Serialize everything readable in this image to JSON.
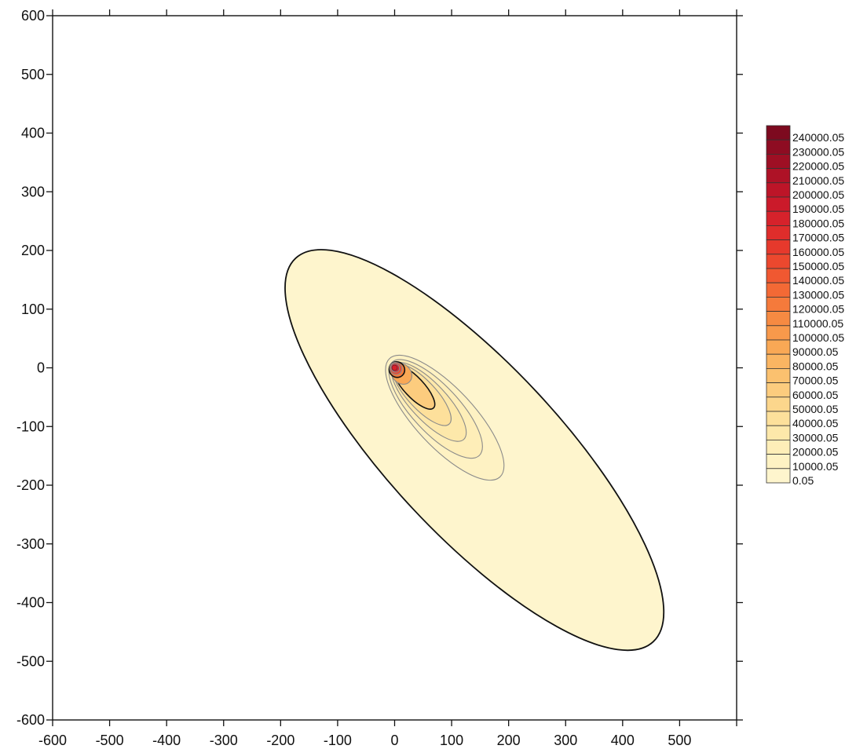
{
  "chart_data": {
    "type": "contour",
    "title": "",
    "xlabel": "",
    "ylabel": "",
    "xlim": [
      -600,
      600
    ],
    "ylim": [
      -600,
      600
    ],
    "x_tick_labels": [
      -600,
      -500,
      -400,
      -300,
      -200,
      -100,
      0,
      100,
      200,
      300,
      400,
      500
    ],
    "y_tick_labels": [
      600,
      500,
      400,
      300,
      200,
      100,
      0,
      -100,
      -200,
      -300,
      -400,
      -500,
      -600
    ],
    "source_point": [
      0,
      0
    ],
    "contour_levels": [
      {
        "level": "0.05",
        "center": [
          140,
          -140
        ],
        "semi_major": 460,
        "semi_minor": 145,
        "angle_deg": -47
      },
      {
        "level": "10000.05",
        "center": [
          88,
          -85
        ],
        "semi_major": 142,
        "semi_minor": 50,
        "angle_deg": -47
      },
      {
        "level": "20000.05",
        "center": [
          72,
          -70
        ],
        "semi_major": 112,
        "semi_minor": 40,
        "angle_deg": -47
      },
      {
        "level": "30000.05",
        "center": [
          60,
          -58
        ],
        "semi_major": 90,
        "semi_minor": 31,
        "angle_deg": -47
      },
      {
        "level": "40000.05",
        "center": [
          48,
          -46
        ],
        "semi_major": 70,
        "semi_minor": 24,
        "angle_deg": -47
      },
      {
        "level": "60000.05",
        "center": [
          34,
          -33
        ],
        "semi_major": 50,
        "semi_minor": 17,
        "angle_deg": -47
      },
      {
        "level": "90000.05",
        "center": [
          12,
          -10
        ],
        "semi_major": 20,
        "semi_minor": 16,
        "angle_deg": -47
      },
      {
        "level": "120000.05",
        "center": [
          4,
          -3
        ],
        "semi_major": 14,
        "semi_minor": 13,
        "angle_deg": -47
      },
      {
        "level": "150000.05",
        "center": [
          2,
          -1
        ],
        "semi_major": 11,
        "semi_minor": 10,
        "angle_deg": -47
      },
      {
        "level": "180000.05",
        "center": [
          1,
          0
        ],
        "semi_major": 8,
        "semi_minor": 7,
        "angle_deg": -47
      },
      {
        "level": "210000.05",
        "center": [
          0,
          0
        ],
        "semi_major": 5,
        "semi_minor": 5,
        "angle_deg": 0
      },
      {
        "level": "240000.05",
        "center": [
          0,
          0
        ],
        "semi_major": 3,
        "semi_minor": 3,
        "angle_deg": 0
      }
    ],
    "legend": {
      "placement": "right",
      "labels": [
        "240000.05",
        "230000.05",
        "220000.05",
        "210000.05",
        "200000.05",
        "190000.05",
        "180000.05",
        "170000.05",
        "160000.05",
        "150000.05",
        "140000.05",
        "130000.05",
        "120000.05",
        "110000.05",
        "100000.05",
        "90000.05",
        "80000.05",
        "70000.05",
        "60000.05",
        "50000.05",
        "40000.05",
        "30000.05",
        "20000.05",
        "10000.05",
        "0.05"
      ],
      "colors": [
        "#7d0a1f",
        "#8e0c22",
        "#9e0f24",
        "#ae1226",
        "#bd1528",
        "#cb1a2a",
        "#d6222b",
        "#df2d2b",
        "#e6392c",
        "#ec482e",
        "#f05831",
        "#f36935",
        "#f57a3b",
        "#f68a42",
        "#f8994b",
        "#f9a855",
        "#fab562",
        "#fbc16f",
        "#fccc7e",
        "#fcd68c",
        "#fde09b",
        "#fde8aa",
        "#feeeb8",
        "#fef2c3",
        "#fef5cd"
      ]
    }
  }
}
